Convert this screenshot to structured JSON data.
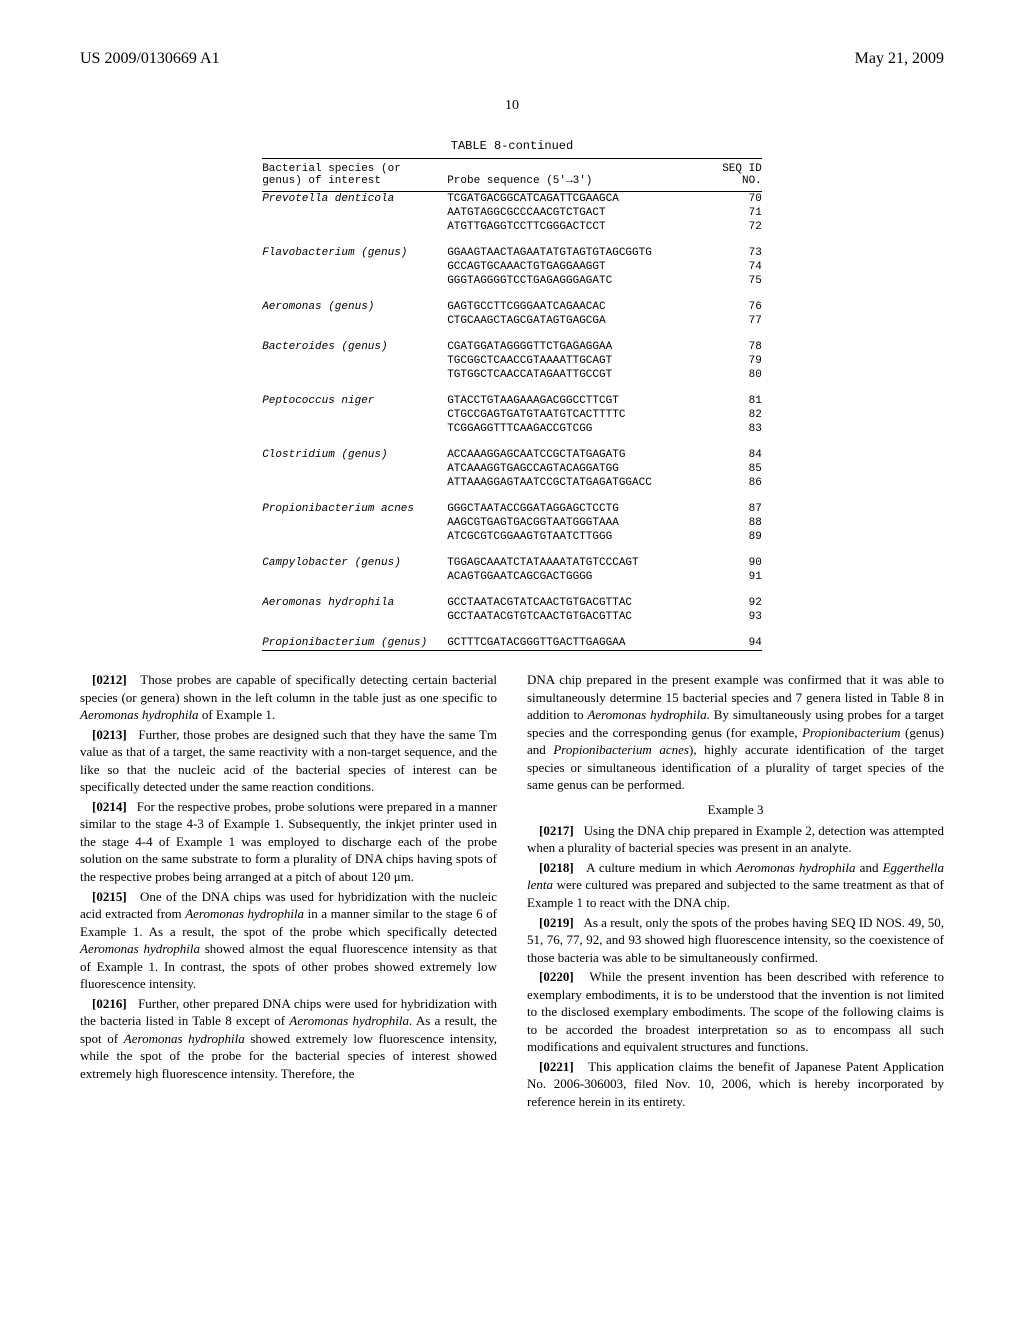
{
  "header": {
    "doc_number": "US 2009/0130669 A1",
    "date": "May 21, 2009",
    "page_number": "10"
  },
  "table": {
    "title": "TABLE 8-continued",
    "headers": {
      "species": "Bacterial species (or\ngenus) of interest",
      "probe": "Probe sequence (5'→3')",
      "seqid": "SEQ ID\nNO."
    },
    "rows": [
      {
        "species": "Prevotella denticola",
        "seqs": [
          {
            "s": "TCGATGACGGCATCAGATTCGAAGCA",
            "n": "70"
          },
          {
            "s": "AATGTAGGCGCCCAACGTCTGACT",
            "n": "71"
          },
          {
            "s": "ATGTTGAGGTCCTTCGGGACTCCT",
            "n": "72"
          }
        ]
      },
      {
        "species": "Flavobacterium (genus)",
        "seqs": [
          {
            "s": "GGAAGTAACTAGAATATGTAGTGTAGCGGTG",
            "n": "73"
          },
          {
            "s": "GCCAGTGCAAACTGTGAGGAAGGT",
            "n": "74"
          },
          {
            "s": "GGGTAGGGGTCCTGAGAGGGAGATC",
            "n": "75"
          }
        ]
      },
      {
        "species": "Aeromonas (genus)",
        "seqs": [
          {
            "s": "GAGTGCCTTCGGGAATCAGAACAC",
            "n": "76"
          },
          {
            "s": "CTGCAAGCTAGCGATAGTGAGCGA",
            "n": "77"
          }
        ]
      },
      {
        "species": "Bacteroides (genus)",
        "seqs": [
          {
            "s": "CGATGGATAGGGGTTCTGAGAGGAA",
            "n": "78"
          },
          {
            "s": "TGCGGCTCAACCGTAAAATTGCAGT",
            "n": "79"
          },
          {
            "s": "TGTGGCTCAACCATAGAATTGCCGT",
            "n": "80"
          }
        ]
      },
      {
        "species": "Peptococcus niger",
        "seqs": [
          {
            "s": "GTACCTGTAAGAAAGACGGCCTTCGT",
            "n": "81"
          },
          {
            "s": "CTGCCGAGTGATGTAATGTCACTTTTC",
            "n": "82"
          },
          {
            "s": "TCGGAGGTTTCAAGACCGTCGG",
            "n": "83"
          }
        ]
      },
      {
        "species": "Clostridium (genus)",
        "seqs": [
          {
            "s": "ACCAAAGGAGCAATCCGCTATGAGATG",
            "n": "84"
          },
          {
            "s": "ATCAAAGGTGAGCCAGTACAGGATGG",
            "n": "85"
          },
          {
            "s": "ATTAAAGGAGTAATCCGCTATGAGATGGACC",
            "n": "86"
          }
        ]
      },
      {
        "species": "Propionibacterium acnes",
        "seqs": [
          {
            "s": "GGGCTAATACCGGATAGGAGCTCCTG",
            "n": "87"
          },
          {
            "s": "AAGCGTGAGTGACGGTAATGGGTAAA",
            "n": "88"
          },
          {
            "s": "ATCGCGTCGGAAGTGTAATCTTGGG",
            "n": "89"
          }
        ]
      },
      {
        "species": "Campylobacter (genus)",
        "seqs": [
          {
            "s": "TGGAGCAAATCTATAAAATATGTCCCAGT",
            "n": "90"
          },
          {
            "s": "ACAGTGGAATCAGCGACTGGGG",
            "n": "91"
          }
        ]
      },
      {
        "species": "Aeromonas hydrophila",
        "seqs": [
          {
            "s": "GCCTAATACGTATCAACTGTGACGTTAC",
            "n": "92"
          },
          {
            "s": "GCCTAATACGTGTCAACTGTGACGTTAC",
            "n": "93"
          }
        ]
      },
      {
        "species": "Propionibacterium (genus)",
        "seqs": [
          {
            "s": "GCTTTCGATACGGGTTGACTTGAGGAA",
            "n": "94"
          }
        ]
      }
    ]
  },
  "left": {
    "p0212": {
      "num": "[0212]",
      "text": "Those probes are capable of specifically detecting certain bacterial species (or genera) shown in the left column in the table just as one specific to ",
      "i1": "Aeromonas hydrophila",
      "t2": " of Example 1."
    },
    "p0213": {
      "num": "[0213]",
      "text": "Further, those probes are designed such that they have the same Tm value as that of a target, the same reactivity with a non-target sequence, and the like so that the nucleic acid of the bacterial species of interest can be specifically detected under the same reaction conditions."
    },
    "p0214": {
      "num": "[0214]",
      "text": "For the respective probes, probe solutions were prepared in a manner similar to the stage 4-3 of Example 1. Subsequently, the inkjet printer used in the stage 4-4 of Example 1 was employed to discharge each of the probe solution on the same substrate to form a plurality of DNA chips having spots of the respective probes being arranged at a pitch of about 120 μm."
    },
    "p0215": {
      "num": "[0215]",
      "t1": "One of the DNA chips was used for hybridization with the nucleic acid extracted from ",
      "i1": "Aeromonas hydrophila",
      "t2": " in a manner similar to the stage 6 of Example 1. As a result, the spot of the probe which specifically detected ",
      "i2": "Aeromonas hydrophila",
      "t3": " showed almost the equal fluorescence intensity as that of Example 1. In contrast, the spots of other probes showed extremely low fluorescence intensity."
    },
    "p0216": {
      "num": "[0216]",
      "t1": "Further, other prepared DNA chips were used for hybridization with the bacteria listed in Table 8 except of ",
      "i1": "Aeromonas hydrophila",
      "t2": ". As a result, the spot of ",
      "i2": "Aeromonas hydrophila",
      "t3": " showed extremely low fluorescence intensity, while the spot of the probe for the bacterial species of interest showed extremely high fluorescence intensity. Therefore, the"
    }
  },
  "right": {
    "carry": {
      "t1": "DNA chip prepared in the present example was confirmed that it was able to simultaneously determine 15 bacterial species and 7 genera listed in Table 8 in addition to ",
      "i1": "Aeromonas hydrophila",
      "t2": ". By simultaneously using probes for a target species and the corresponding genus (for example, ",
      "i2": "Propionibacterium",
      "t3": " (genus) and ",
      "i3": "Propionibacterium acnes",
      "t4": "), highly accurate identification of the target species or simultaneous identification of a plurality of target species of the same genus can be performed."
    },
    "ex3": "Example 3",
    "p0217": {
      "num": "[0217]",
      "text": "Using the DNA chip prepared in Example 2, detection was attempted when a plurality of bacterial species was present in an analyte."
    },
    "p0218": {
      "num": "[0218]",
      "t1": "A culture medium in which ",
      "i1": "Aeromonas hydrophila",
      "t2": " and ",
      "i2": "Eggerthella lenta",
      "t3": " were cultured was prepared and subjected to the same treatment as that of Example 1 to react with the DNA chip."
    },
    "p0219": {
      "num": "[0219]",
      "text": "As a result, only the spots of the probes having SEQ ID NOS. 49, 50, 51, 76, 77, 92, and 93 showed high fluorescence intensity, so the coexistence of those bacteria was able to be simultaneously confirmed."
    },
    "p0220": {
      "num": "[0220]",
      "text": "While the present invention has been described with reference to exemplary embodiments, it is to be understood that the invention is not limited to the disclosed exemplary embodiments. The scope of the following claims is to be accorded the broadest interpretation so as to encompass all such modifications and equivalent structures and functions."
    },
    "p0221": {
      "num": "[0221]",
      "text": "This application claims the benefit of Japanese Patent Application No. 2006-306003, filed Nov. 10, 2006, which is hereby incorporated by reference herein in its entirety."
    }
  }
}
